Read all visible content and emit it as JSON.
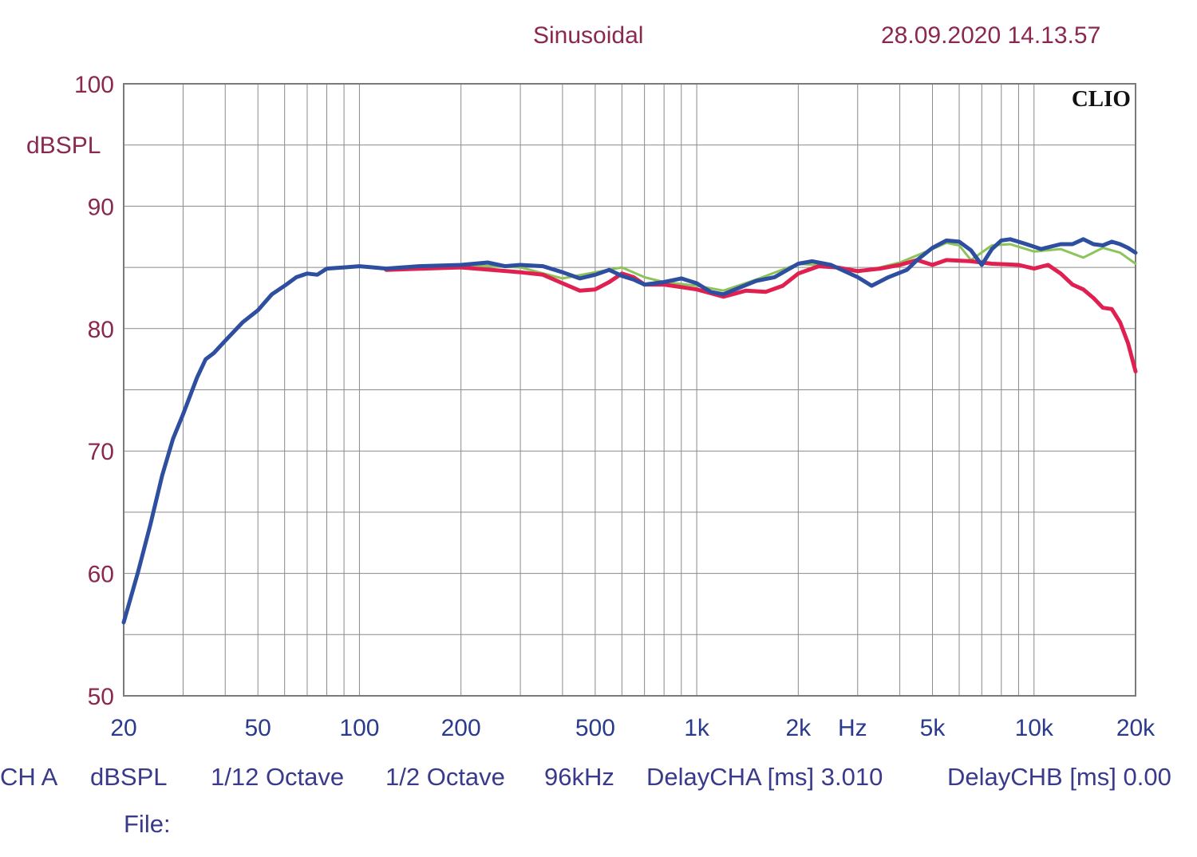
{
  "header": {
    "mode": "Sinusoidal",
    "datetime": "28.09.2020 14.13.57"
  },
  "brand_label": "CLIO",
  "footer": {
    "channel": "CH A",
    "unit": "dBSPL",
    "smoothing": "1/12 Octave",
    "resolution": "1/2 Octave",
    "sample_rate": "96kHz",
    "delay_a": "DelayCHA [ms] 3.010",
    "delay_b": "DelayCHB [ms] 0.00",
    "file_label": "File:"
  },
  "chart_data": {
    "type": "line",
    "title": "",
    "xlabel": "Hz",
    "ylabel": "dBSPL",
    "xscale": "log",
    "xlim": [
      20,
      20000
    ],
    "ylim": [
      50,
      100
    ],
    "grid": true,
    "x_ticks": [
      20,
      50,
      100,
      200,
      500,
      1000,
      2000,
      5000,
      10000,
      20000
    ],
    "x_tick_labels": [
      "20",
      "50",
      "100",
      "200",
      "500",
      "1k",
      "2k",
      "5k",
      "10k",
      "20k"
    ],
    "y_ticks": [
      50,
      60,
      70,
      80,
      90,
      100
    ],
    "y_tick_labels": [
      "50",
      "60",
      "70",
      "80",
      "90",
      "100"
    ],
    "series": [
      {
        "color": "#8cc45a",
        "points": [
          [
            120,
            84.9
          ],
          [
            200,
            85.2
          ],
          [
            300,
            85.0
          ],
          [
            400,
            84.1
          ],
          [
            500,
            84.6
          ],
          [
            600,
            85.0
          ],
          [
            700,
            84.2
          ],
          [
            800,
            83.8
          ],
          [
            1000,
            83.5
          ],
          [
            1200,
            83.1
          ],
          [
            1500,
            84.0
          ],
          [
            2000,
            85.3
          ],
          [
            2500,
            85.1
          ],
          [
            3000,
            84.6
          ],
          [
            3500,
            85.0
          ],
          [
            4000,
            85.4
          ],
          [
            5000,
            86.5
          ],
          [
            5500,
            87.0
          ],
          [
            6000,
            86.8
          ],
          [
            6500,
            85.6
          ],
          [
            7500,
            86.8
          ],
          [
            8500,
            86.9
          ],
          [
            10000,
            86.3
          ],
          [
            12000,
            86.5
          ],
          [
            14000,
            85.8
          ],
          [
            16000,
            86.6
          ],
          [
            18000,
            86.2
          ],
          [
            20000,
            85.3
          ]
        ]
      },
      {
        "color": "#e02050",
        "points": [
          [
            120,
            84.8
          ],
          [
            200,
            85.0
          ],
          [
            300,
            84.6
          ],
          [
            350,
            84.4
          ],
          [
            400,
            83.7
          ],
          [
            450,
            83.1
          ],
          [
            500,
            83.2
          ],
          [
            550,
            83.8
          ],
          [
            600,
            84.5
          ],
          [
            650,
            84.2
          ],
          [
            700,
            83.6
          ],
          [
            800,
            83.6
          ],
          [
            1000,
            83.2
          ],
          [
            1200,
            82.6
          ],
          [
            1400,
            83.1
          ],
          [
            1600,
            83.0
          ],
          [
            1800,
            83.5
          ],
          [
            2000,
            84.5
          ],
          [
            2300,
            85.1
          ],
          [
            2600,
            85.0
          ],
          [
            3000,
            84.7
          ],
          [
            3500,
            84.9
          ],
          [
            4000,
            85.2
          ],
          [
            4500,
            85.6
          ],
          [
            5000,
            85.2
          ],
          [
            5500,
            85.6
          ],
          [
            6500,
            85.5
          ],
          [
            7500,
            85.3
          ],
          [
            9000,
            85.2
          ],
          [
            10000,
            84.9
          ],
          [
            11000,
            85.2
          ],
          [
            12000,
            84.5
          ],
          [
            13000,
            83.6
          ],
          [
            14000,
            83.2
          ],
          [
            15000,
            82.5
          ],
          [
            16000,
            81.7
          ],
          [
            17000,
            81.6
          ],
          [
            18000,
            80.5
          ],
          [
            19000,
            78.8
          ],
          [
            20000,
            76.5
          ]
        ]
      },
      {
        "color": "#2e4fa0",
        "points": [
          [
            20,
            56
          ],
          [
            22,
            60
          ],
          [
            24,
            64
          ],
          [
            26,
            68
          ],
          [
            28,
            71
          ],
          [
            30,
            73
          ],
          [
            33,
            76
          ],
          [
            35,
            77.5
          ],
          [
            37,
            78
          ],
          [
            40,
            79
          ],
          [
            45,
            80.5
          ],
          [
            50,
            81.5
          ],
          [
            55,
            82.8
          ],
          [
            60,
            83.5
          ],
          [
            65,
            84.2
          ],
          [
            70,
            84.5
          ],
          [
            75,
            84.4
          ],
          [
            80,
            84.9
          ],
          [
            90,
            85.0
          ],
          [
            100,
            85.1
          ],
          [
            110,
            85.0
          ],
          [
            120,
            84.9
          ],
          [
            150,
            85.1
          ],
          [
            200,
            85.2
          ],
          [
            240,
            85.4
          ],
          [
            270,
            85.1
          ],
          [
            300,
            85.2
          ],
          [
            350,
            85.1
          ],
          [
            400,
            84.6
          ],
          [
            450,
            84.1
          ],
          [
            500,
            84.4
          ],
          [
            550,
            84.8
          ],
          [
            600,
            84.3
          ],
          [
            650,
            84.0
          ],
          [
            700,
            83.6
          ],
          [
            800,
            83.8
          ],
          [
            900,
            84.1
          ],
          [
            1000,
            83.7
          ],
          [
            1100,
            83.0
          ],
          [
            1200,
            82.8
          ],
          [
            1300,
            83.2
          ],
          [
            1500,
            83.9
          ],
          [
            1700,
            84.2
          ],
          [
            2000,
            85.3
          ],
          [
            2200,
            85.5
          ],
          [
            2500,
            85.2
          ],
          [
            3000,
            84.2
          ],
          [
            3300,
            83.5
          ],
          [
            3700,
            84.2
          ],
          [
            4200,
            84.8
          ],
          [
            4500,
            85.6
          ],
          [
            5000,
            86.6
          ],
          [
            5500,
            87.2
          ],
          [
            6000,
            87.1
          ],
          [
            6500,
            86.4
          ],
          [
            7000,
            85.2
          ],
          [
            7500,
            86.5
          ],
          [
            8000,
            87.2
          ],
          [
            8500,
            87.3
          ],
          [
            9500,
            86.9
          ],
          [
            10500,
            86.5
          ],
          [
            12000,
            86.9
          ],
          [
            13000,
            86.9
          ],
          [
            14000,
            87.3
          ],
          [
            15000,
            86.9
          ],
          [
            16000,
            86.8
          ],
          [
            17000,
            87.1
          ],
          [
            18000,
            86.9
          ],
          [
            19000,
            86.6
          ],
          [
            20000,
            86.2
          ]
        ]
      }
    ]
  }
}
